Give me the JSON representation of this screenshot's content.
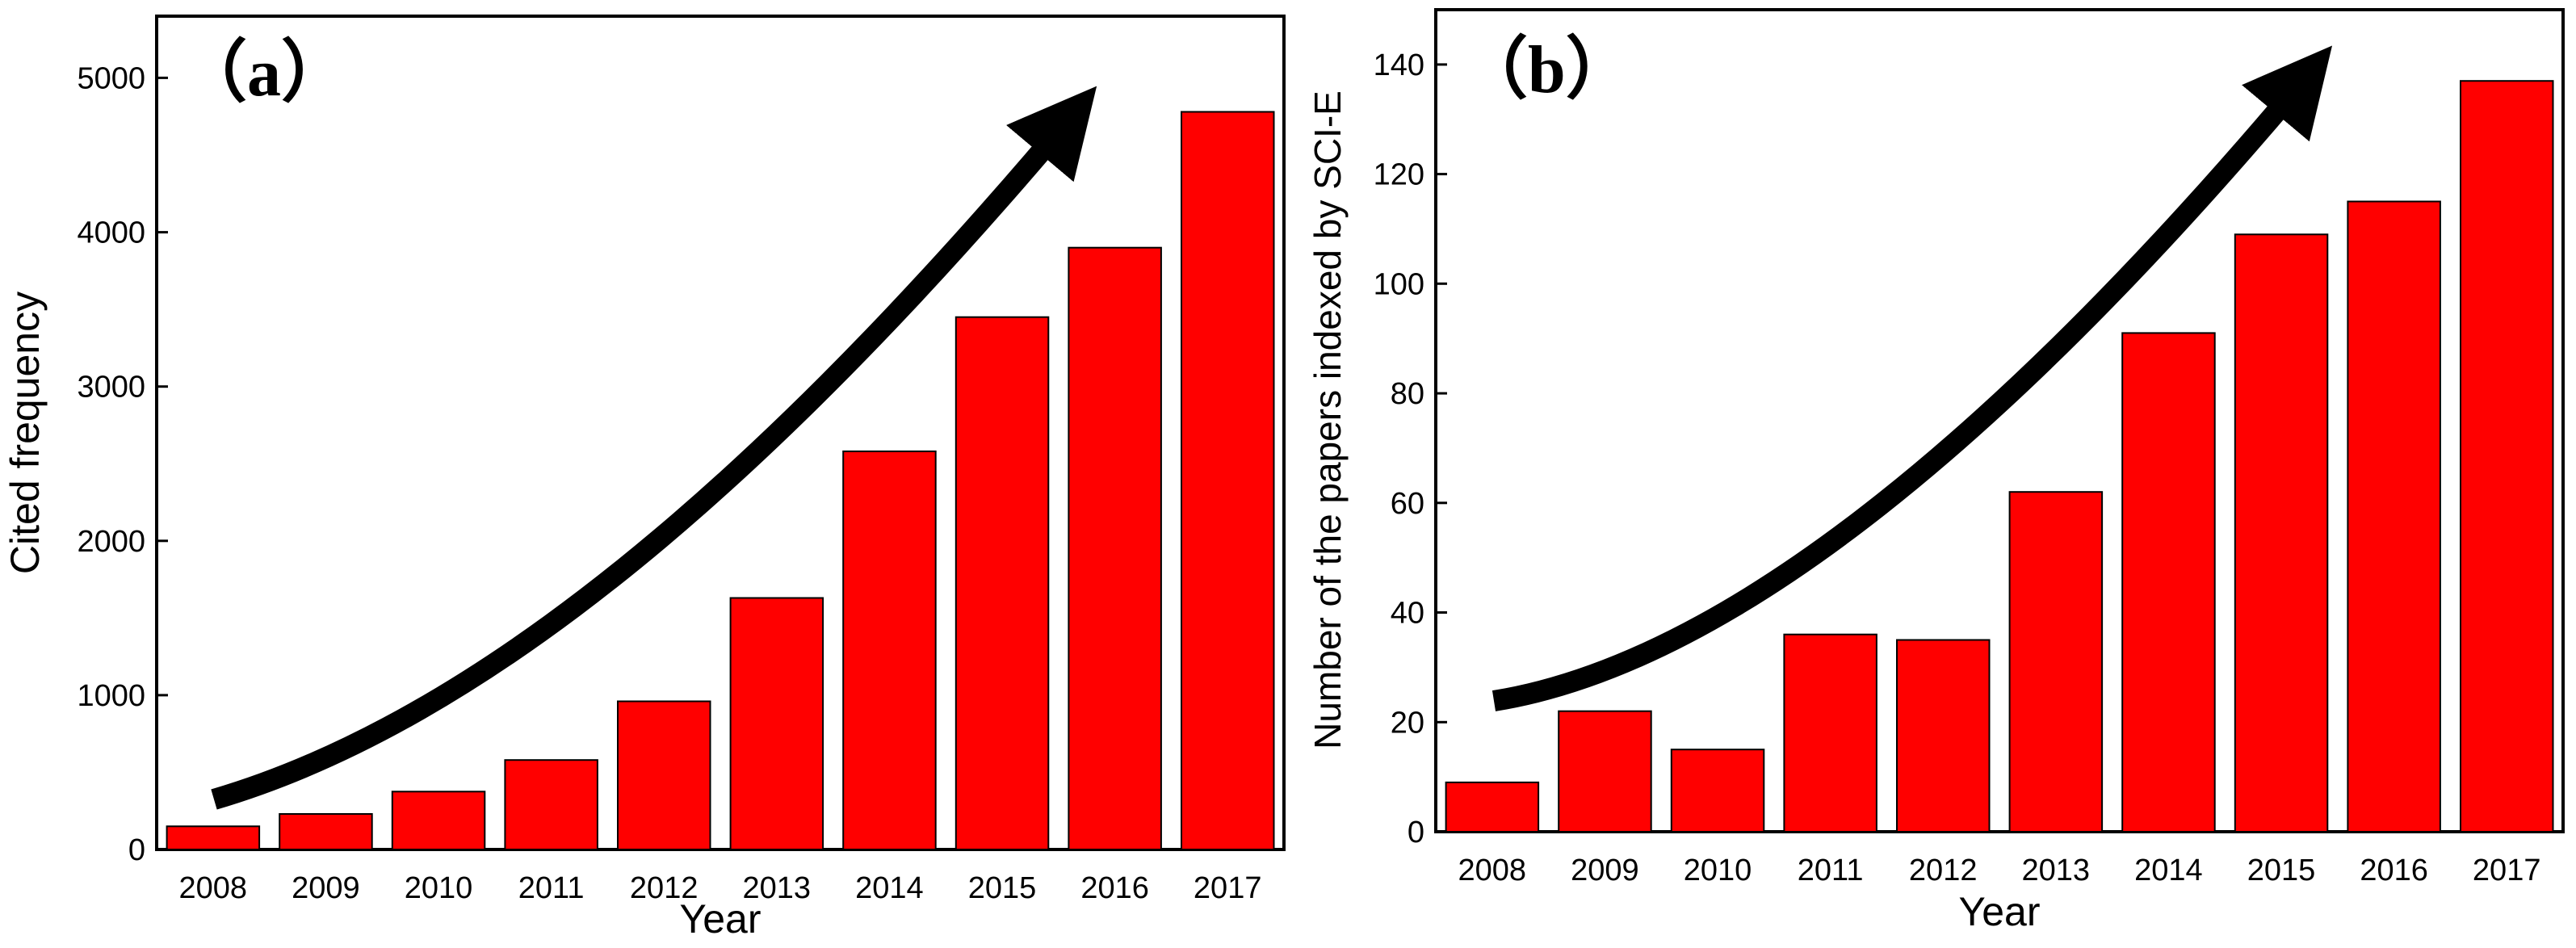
{
  "chart_data": [
    {
      "type": "bar",
      "panel_label": "（a）",
      "title": "",
      "xlabel": "Year",
      "ylabel": "Cited frequency",
      "categories": [
        "2008",
        "2009",
        "2010",
        "2011",
        "2012",
        "2013",
        "2014",
        "2015",
        "2016",
        "2017"
      ],
      "values": [
        150,
        230,
        375,
        580,
        960,
        1630,
        2580,
        3450,
        3900,
        4780
      ],
      "ylim": [
        0,
        5400
      ],
      "yticks": [
        0,
        1000,
        2000,
        3000,
        4000,
        5000
      ],
      "bar_color": "#ff0000",
      "annotation": "trend-arrow"
    },
    {
      "type": "bar",
      "panel_label": "（b）",
      "title": "",
      "xlabel": "Year",
      "ylabel": "Number of the papers indexed by SCI-E",
      "categories": [
        "2008",
        "2009",
        "2010",
        "2011",
        "2012",
        "2013",
        "2014",
        "2015",
        "2016",
        "2017"
      ],
      "values": [
        9,
        22,
        15,
        36,
        35,
        62,
        91,
        109,
        115,
        137
      ],
      "ylim": [
        0,
        150
      ],
      "yticks": [
        0,
        20,
        40,
        60,
        80,
        100,
        120,
        140
      ],
      "bar_color": "#ff0000",
      "annotation": "trend-arrow"
    }
  ]
}
